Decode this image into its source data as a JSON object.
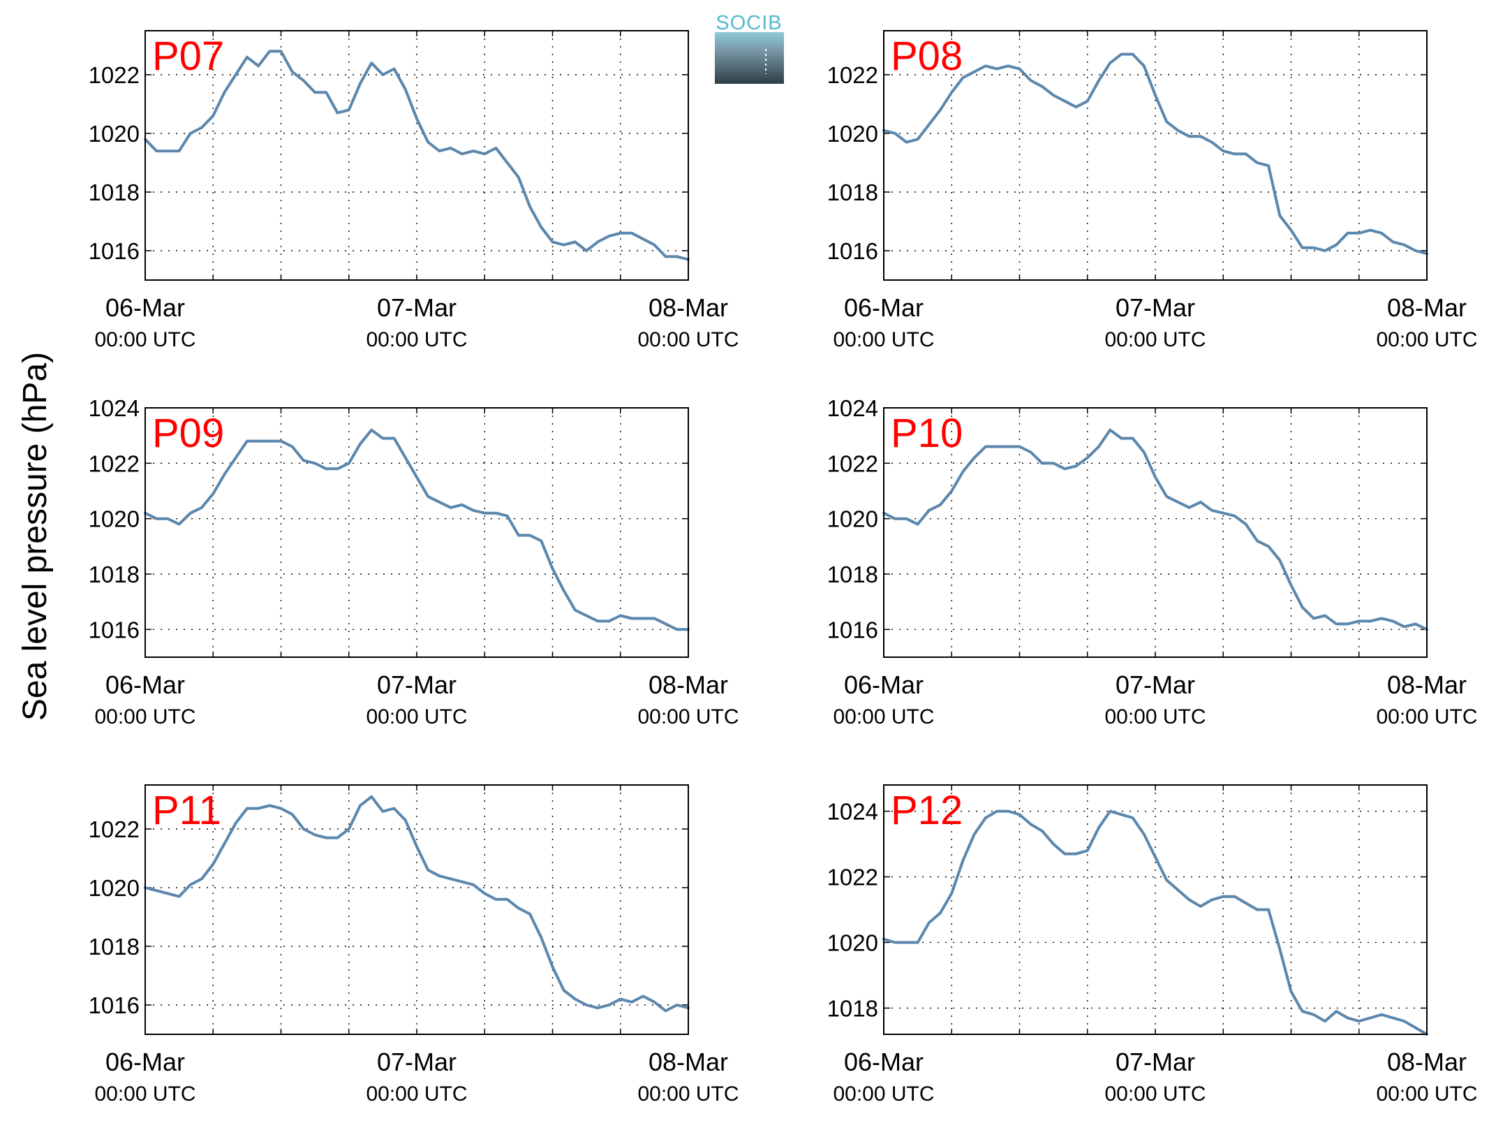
{
  "ylabel": "Sea level pressure (hPa)",
  "logo": {
    "text": "SOCIB",
    "color_top": "#8ecbd8",
    "color_bottom": "#2f3e48",
    "text_color": "#56b8d0"
  },
  "colors": {
    "line": "#5b87ad",
    "panel_label": "#ff0000",
    "grid": "#000000"
  },
  "x_ticks": [
    {
      "date": "06-Mar",
      "time": "00:00 UTC"
    },
    {
      "date": "07-Mar",
      "time": "00:00 UTC"
    },
    {
      "date": "08-Mar",
      "time": "00:00 UTC"
    }
  ],
  "chart_data": [
    {
      "type": "line",
      "label": "P07",
      "grid": true,
      "xlim": [
        0,
        48
      ],
      "ylim": [
        1015,
        1023.5
      ],
      "yticks": [
        "1016",
        "1018",
        "1020",
        "1022"
      ],
      "x_unit": "hours since 06-Mar 00:00 UTC",
      "x": [
        0,
        1,
        2,
        3,
        4,
        5,
        6,
        7,
        8,
        9,
        10,
        11,
        12,
        13,
        14,
        15,
        16,
        17,
        18,
        19,
        20,
        21,
        22,
        23,
        24,
        25,
        26,
        27,
        28,
        29,
        30,
        31,
        32,
        33,
        34,
        35,
        36,
        37,
        38,
        39,
        40,
        41,
        42,
        43,
        44,
        45,
        46,
        47,
        48
      ],
      "y": [
        1019.8,
        1019.4,
        1019.4,
        1019.4,
        1020.0,
        1020.2,
        1020.6,
        1021.4,
        1022.0,
        1022.6,
        1022.3,
        1022.8,
        1022.8,
        1022.1,
        1021.8,
        1021.4,
        1021.4,
        1020.7,
        1020.8,
        1021.7,
        1022.4,
        1022.0,
        1022.2,
        1021.5,
        1020.5,
        1019.7,
        1019.4,
        1019.5,
        1019.3,
        1019.4,
        1019.3,
        1019.5,
        1019.0,
        1018.5,
        1017.5,
        1016.8,
        1016.3,
        1016.2,
        1016.3,
        1016.0,
        1016.3,
        1016.5,
        1016.6,
        1016.6,
        1016.4,
        1016.2,
        1015.8,
        1015.8,
        1015.7
      ]
    },
    {
      "type": "line",
      "label": "P08",
      "grid": true,
      "xlim": [
        0,
        48
      ],
      "ylim": [
        1015,
        1023.5
      ],
      "yticks": [
        "1016",
        "1018",
        "1020",
        "1022"
      ],
      "x_unit": "hours since 06-Mar 00:00 UTC",
      "x": [
        0,
        1,
        2,
        3,
        4,
        5,
        6,
        7,
        8,
        9,
        10,
        11,
        12,
        13,
        14,
        15,
        16,
        17,
        18,
        19,
        20,
        21,
        22,
        23,
        24,
        25,
        26,
        27,
        28,
        29,
        30,
        31,
        32,
        33,
        34,
        35,
        36,
        37,
        38,
        39,
        40,
        41,
        42,
        43,
        44,
        45,
        46,
        47,
        48
      ],
      "y": [
        1020.1,
        1020.0,
        1019.7,
        1019.8,
        1020.3,
        1020.8,
        1021.4,
        1021.9,
        1022.1,
        1022.3,
        1022.2,
        1022.3,
        1022.2,
        1021.8,
        1021.6,
        1021.3,
        1021.1,
        1020.9,
        1021.1,
        1021.8,
        1022.4,
        1022.7,
        1022.7,
        1022.3,
        1021.3,
        1020.4,
        1020.1,
        1019.9,
        1019.9,
        1019.7,
        1019.4,
        1019.3,
        1019.3,
        1019.0,
        1018.9,
        1017.2,
        1016.7,
        1016.1,
        1016.1,
        1016.0,
        1016.2,
        1016.6,
        1016.6,
        1016.7,
        1016.6,
        1016.3,
        1016.2,
        1016.0,
        1015.9
      ]
    },
    {
      "type": "line",
      "label": "P09",
      "grid": true,
      "xlim": [
        0,
        48
      ],
      "ylim": [
        1015,
        1024
      ],
      "yticks": [
        "1016",
        "1018",
        "1020",
        "1022",
        "1024"
      ],
      "x_unit": "hours since 06-Mar 00:00 UTC",
      "x": [
        0,
        1,
        2,
        3,
        4,
        5,
        6,
        7,
        8,
        9,
        10,
        11,
        12,
        13,
        14,
        15,
        16,
        17,
        18,
        19,
        20,
        21,
        22,
        23,
        24,
        25,
        26,
        27,
        28,
        29,
        30,
        31,
        32,
        33,
        34,
        35,
        36,
        37,
        38,
        39,
        40,
        41,
        42,
        43,
        44,
        45,
        46,
        47,
        48
      ],
      "y": [
        1020.2,
        1020.0,
        1020.0,
        1019.8,
        1020.2,
        1020.4,
        1020.9,
        1021.6,
        1022.2,
        1022.8,
        1022.8,
        1022.8,
        1022.8,
        1022.6,
        1022.1,
        1022.0,
        1021.8,
        1021.8,
        1022.0,
        1022.7,
        1023.2,
        1022.9,
        1022.9,
        1022.2,
        1021.5,
        1020.8,
        1020.6,
        1020.4,
        1020.5,
        1020.3,
        1020.2,
        1020.2,
        1020.1,
        1019.4,
        1019.4,
        1019.2,
        1018.2,
        1017.4,
        1016.7,
        1016.5,
        1016.3,
        1016.3,
        1016.5,
        1016.4,
        1016.4,
        1016.4,
        1016.2,
        1016.0,
        1016.0
      ]
    },
    {
      "type": "line",
      "label": "P10",
      "grid": true,
      "xlim": [
        0,
        48
      ],
      "ylim": [
        1015,
        1024
      ],
      "yticks": [
        "1016",
        "1018",
        "1020",
        "1022",
        "1024"
      ],
      "x_unit": "hours since 06-Mar 00:00 UTC",
      "x": [
        0,
        1,
        2,
        3,
        4,
        5,
        6,
        7,
        8,
        9,
        10,
        11,
        12,
        13,
        14,
        15,
        16,
        17,
        18,
        19,
        20,
        21,
        22,
        23,
        24,
        25,
        26,
        27,
        28,
        29,
        30,
        31,
        32,
        33,
        34,
        35,
        36,
        37,
        38,
        39,
        40,
        41,
        42,
        43,
        44,
        45,
        46,
        47,
        48
      ],
      "y": [
        1020.2,
        1020.0,
        1020.0,
        1019.8,
        1020.3,
        1020.5,
        1021.0,
        1021.7,
        1022.2,
        1022.6,
        1022.6,
        1022.6,
        1022.6,
        1022.4,
        1022.0,
        1022.0,
        1021.8,
        1021.9,
        1022.2,
        1022.6,
        1023.2,
        1022.9,
        1022.9,
        1022.4,
        1021.5,
        1020.8,
        1020.6,
        1020.4,
        1020.6,
        1020.3,
        1020.2,
        1020.1,
        1019.8,
        1019.2,
        1019.0,
        1018.5,
        1017.6,
        1016.8,
        1016.4,
        1016.5,
        1016.2,
        1016.2,
        1016.3,
        1016.3,
        1016.4,
        1016.3,
        1016.1,
        1016.2,
        1016.0
      ]
    },
    {
      "type": "line",
      "label": "P11",
      "grid": true,
      "xlim": [
        0,
        48
      ],
      "ylim": [
        1015,
        1023.5
      ],
      "yticks": [
        "1016",
        "1018",
        "1020",
        "1022"
      ],
      "x_unit": "hours since 06-Mar 00:00 UTC",
      "x": [
        0,
        1,
        2,
        3,
        4,
        5,
        6,
        7,
        8,
        9,
        10,
        11,
        12,
        13,
        14,
        15,
        16,
        17,
        18,
        19,
        20,
        21,
        22,
        23,
        24,
        25,
        26,
        27,
        28,
        29,
        30,
        31,
        32,
        33,
        34,
        35,
        36,
        37,
        38,
        39,
        40,
        41,
        42,
        43,
        44,
        45,
        46,
        47,
        48
      ],
      "y": [
        1020.0,
        1019.9,
        1019.8,
        1019.7,
        1020.1,
        1020.3,
        1020.8,
        1021.5,
        1022.2,
        1022.7,
        1022.7,
        1022.8,
        1022.7,
        1022.5,
        1022.0,
        1021.8,
        1021.7,
        1021.7,
        1022.0,
        1022.8,
        1023.1,
        1022.6,
        1022.7,
        1022.3,
        1021.4,
        1020.6,
        1020.4,
        1020.3,
        1020.2,
        1020.1,
        1019.8,
        1019.6,
        1019.6,
        1019.3,
        1019.1,
        1018.3,
        1017.3,
        1016.5,
        1016.2,
        1016.0,
        1015.9,
        1016.0,
        1016.2,
        1016.1,
        1016.3,
        1016.1,
        1015.8,
        1016.0,
        1015.9
      ]
    },
    {
      "type": "line",
      "label": "P12",
      "grid": true,
      "xlim": [
        0,
        48
      ],
      "ylim": [
        1017.2,
        1024.8
      ],
      "yticks": [
        "1018",
        "1020",
        "1022",
        "1024"
      ],
      "x_unit": "hours since 06-Mar 00:00 UTC",
      "x": [
        0,
        1,
        2,
        3,
        4,
        5,
        6,
        7,
        8,
        9,
        10,
        11,
        12,
        13,
        14,
        15,
        16,
        17,
        18,
        19,
        20,
        21,
        22,
        23,
        24,
        25,
        26,
        27,
        28,
        29,
        30,
        31,
        32,
        33,
        34,
        35,
        36,
        37,
        38,
        39,
        40,
        41,
        42,
        43,
        44,
        45,
        46,
        47,
        48
      ],
      "y": [
        1020.1,
        1020.0,
        1020.0,
        1020.0,
        1020.6,
        1020.9,
        1021.5,
        1022.5,
        1023.3,
        1023.8,
        1024.0,
        1024.0,
        1023.9,
        1023.6,
        1023.4,
        1023.0,
        1022.7,
        1022.7,
        1022.8,
        1023.5,
        1024.0,
        1023.9,
        1023.8,
        1023.3,
        1022.6,
        1021.9,
        1021.6,
        1021.3,
        1021.1,
        1021.3,
        1021.4,
        1021.4,
        1021.2,
        1021.0,
        1021.0,
        1019.8,
        1018.5,
        1017.9,
        1017.8,
        1017.6,
        1017.9,
        1017.7,
        1017.6,
        1017.7,
        1017.8,
        1017.7,
        1017.6,
        1017.4,
        1017.2
      ]
    }
  ]
}
